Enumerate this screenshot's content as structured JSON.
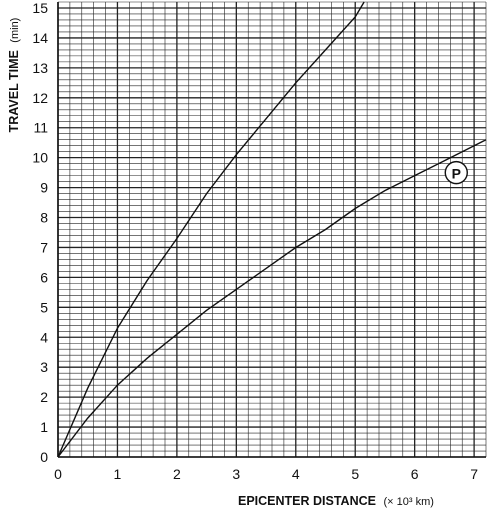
{
  "chart_data": {
    "type": "line",
    "title": "",
    "xlabel": "EPICENTER DISTANCE",
    "xlabel_unit": "(× 10³ km)",
    "ylabel": "TRAVEL TIME",
    "ylabel_unit": "(min)",
    "xlim": [
      0,
      7.2
    ],
    "ylim": [
      0,
      15.2
    ],
    "x_ticks": [
      "0",
      "1",
      "2",
      "3",
      "4",
      "5",
      "6",
      "7"
    ],
    "y_ticks": [
      "0",
      "1",
      "2",
      "3",
      "4",
      "5",
      "6",
      "7",
      "8",
      "9",
      "10",
      "11",
      "12",
      "13",
      "14",
      "15"
    ],
    "grid": true,
    "grid_minor_step_x": 0.2,
    "grid_minor_step_y": 0.2,
    "series": [
      {
        "name": "",
        "x": [
          0,
          0.5,
          1,
          1.5,
          2,
          2.5,
          3,
          3.5,
          4,
          4.5,
          5,
          5.15
        ],
        "y": [
          0,
          2.3,
          4.3,
          5.9,
          7.3,
          8.8,
          10.1,
          11.3,
          12.5,
          13.6,
          14.7,
          15.2
        ]
      },
      {
        "name": "P",
        "x": [
          0,
          0.5,
          1,
          1.5,
          2,
          2.5,
          3,
          3.5,
          4,
          4.5,
          5,
          5.5,
          6,
          6.5,
          7,
          7.2
        ],
        "y": [
          0,
          1.3,
          2.4,
          3.3,
          4.1,
          4.9,
          5.6,
          6.3,
          7.0,
          7.6,
          8.3,
          8.9,
          9.4,
          9.9,
          10.4,
          10.6
        ]
      }
    ],
    "annotation": {
      "label": "P",
      "x": 6.7,
      "y": 9.5
    }
  }
}
